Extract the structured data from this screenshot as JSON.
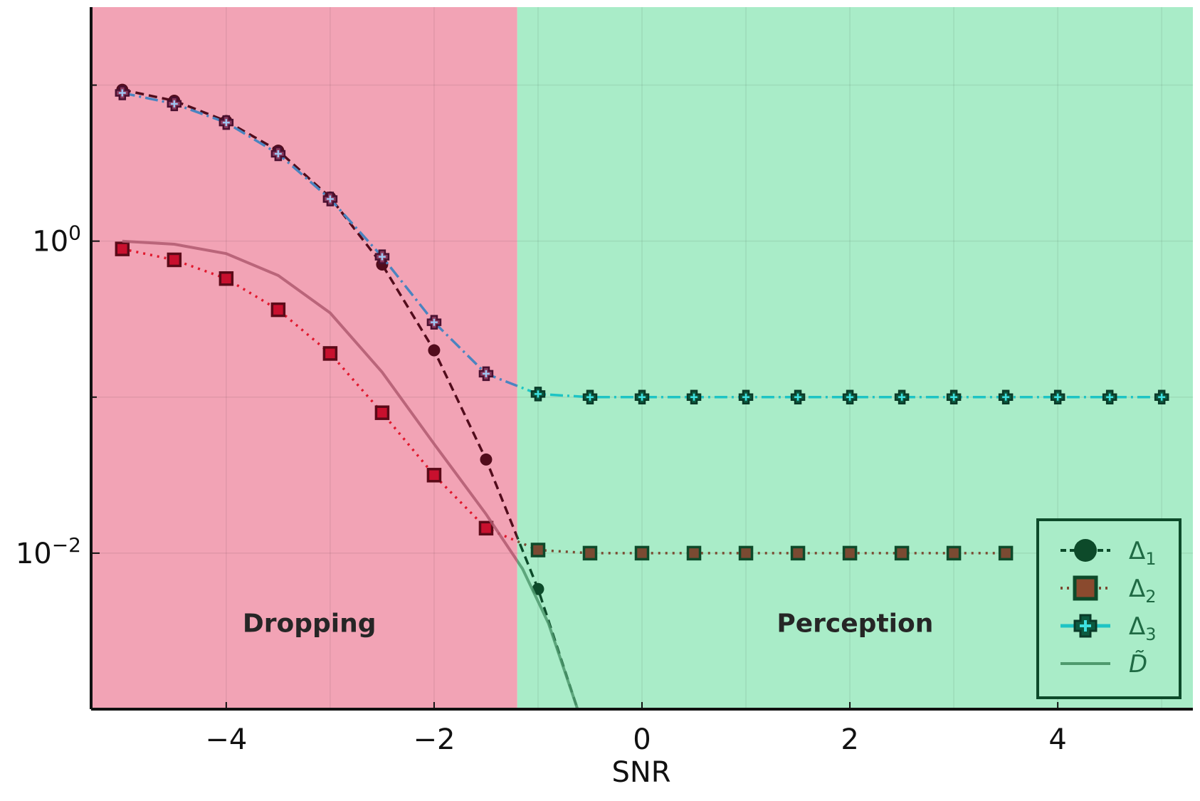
{
  "chart_data": {
    "type": "line",
    "title": "",
    "xlabel": "SNR",
    "ylabel": "",
    "yscale": "log10",
    "xlim": [
      -5.3,
      5.3
    ],
    "ylim_log10": [
      -3,
      1.5
    ],
    "x_ticks": [
      {
        "value": -4,
        "label": "−4"
      },
      {
        "value": -2,
        "label": "−2"
      },
      {
        "value": 0,
        "label": "0"
      },
      {
        "value": 2,
        "label": "2"
      },
      {
        "value": 4,
        "label": "4"
      }
    ],
    "y_ticks": [
      {
        "exponent": 0,
        "base": "10",
        "sup": "0"
      },
      {
        "exponent": -2,
        "base": "10",
        "sup": "−2"
      }
    ],
    "regions": [
      {
        "label": "Dropping",
        "x_from": -5.3,
        "x_to": -1.2,
        "color": "#f2a3b5",
        "label_x": -3.2
      },
      {
        "label": "Perception",
        "x_from": -1.2,
        "x_to": 5.3,
        "color": "#a9ecc8",
        "label_x": 2.05
      }
    ],
    "region_label_log10": -2.45,
    "series": [
      {
        "name": "Δ1",
        "base": "Δ",
        "sub": "1",
        "marker": "circle",
        "dash": "12 7",
        "color_dropping": "#520c1c",
        "color_perception": "#0d4a2a",
        "x": [
          -5,
          -4.5,
          -4,
          -3.5,
          -3,
          -2.5,
          -2,
          -1.5,
          -1,
          -0.62
        ],
        "log10_y": [
          0.97,
          0.9,
          0.77,
          0.58,
          0.28,
          -0.15,
          -0.7,
          -1.4,
          -2.23,
          -3.0
        ],
        "marker_count": 9
      },
      {
        "name": "Δ2",
        "base": "Δ",
        "sub": "2",
        "marker": "square",
        "dash": "3 7",
        "color_dropping": "#e0182d",
        "color_perception": "#7a4a32",
        "marker_fill_dropping": "#c8102e",
        "marker_fill_perception": "#7a4a32",
        "marker_edge_dropping": "#5a0a18",
        "marker_edge_perception": "#0d4a2a",
        "x": [
          -5,
          -4.5,
          -4,
          -3.5,
          -3,
          -2.5,
          -2,
          -1.5,
          -1,
          -0.5,
          0,
          0.5,
          1,
          1.5,
          2,
          2.5,
          3,
          3.5
        ],
        "log10_y": [
          -0.05,
          -0.12,
          -0.24,
          -0.44,
          -0.72,
          -1.1,
          -1.5,
          -1.84,
          -1.98,
          -2,
          -2,
          -2,
          -2,
          -2,
          -2,
          -2,
          -2,
          -2
        ],
        "marker_count": 18
      },
      {
        "name": "Δ3",
        "base": "Δ",
        "sub": "3",
        "marker": "cross",
        "dash": "18 6 3 6",
        "color_dropping": "#4a84c0",
        "color_perception": "#1ec4c4",
        "marker_fill_dropping": "#8a3a5e",
        "marker_fill_perception": "#0d5a40",
        "x": [
          -5,
          -4.5,
          -4,
          -3.5,
          -3,
          -2.5,
          -2,
          -1.5,
          -1,
          -0.5,
          0,
          0.5,
          1,
          1.5,
          2,
          2.5,
          3,
          3.5,
          4,
          4.5,
          5
        ],
        "log10_y": [
          0.95,
          0.88,
          0.76,
          0.56,
          0.27,
          -0.1,
          -0.52,
          -0.85,
          -0.98,
          -1,
          -1,
          -1,
          -1,
          -1,
          -1,
          -1,
          -1,
          -1,
          -1,
          -1,
          -1
        ],
        "marker_count": 21
      },
      {
        "name": "D̃",
        "base": "D̃",
        "sub": "",
        "marker": "none",
        "dash": "",
        "color_dropping": "#b05a70",
        "color_perception": "#4f9a6e",
        "x": [
          -5,
          -4.5,
          -4,
          -3.5,
          -3,
          -2.5,
          -2,
          -1.5,
          -1.15,
          -0.9,
          -0.62
        ],
        "log10_y": [
          0,
          -0.02,
          -0.08,
          -0.22,
          -0.46,
          -0.84,
          -1.3,
          -1.75,
          -2.1,
          -2.45,
          -3.0
        ],
        "marker_count": 0
      }
    ],
    "legend": {
      "position": "bottom-right",
      "text_color": "#1f6a44",
      "border_color": "#0d4a2a"
    }
  },
  "colors": {
    "axis": "#111111",
    "grid": "#000000",
    "background": "#ffffff"
  }
}
